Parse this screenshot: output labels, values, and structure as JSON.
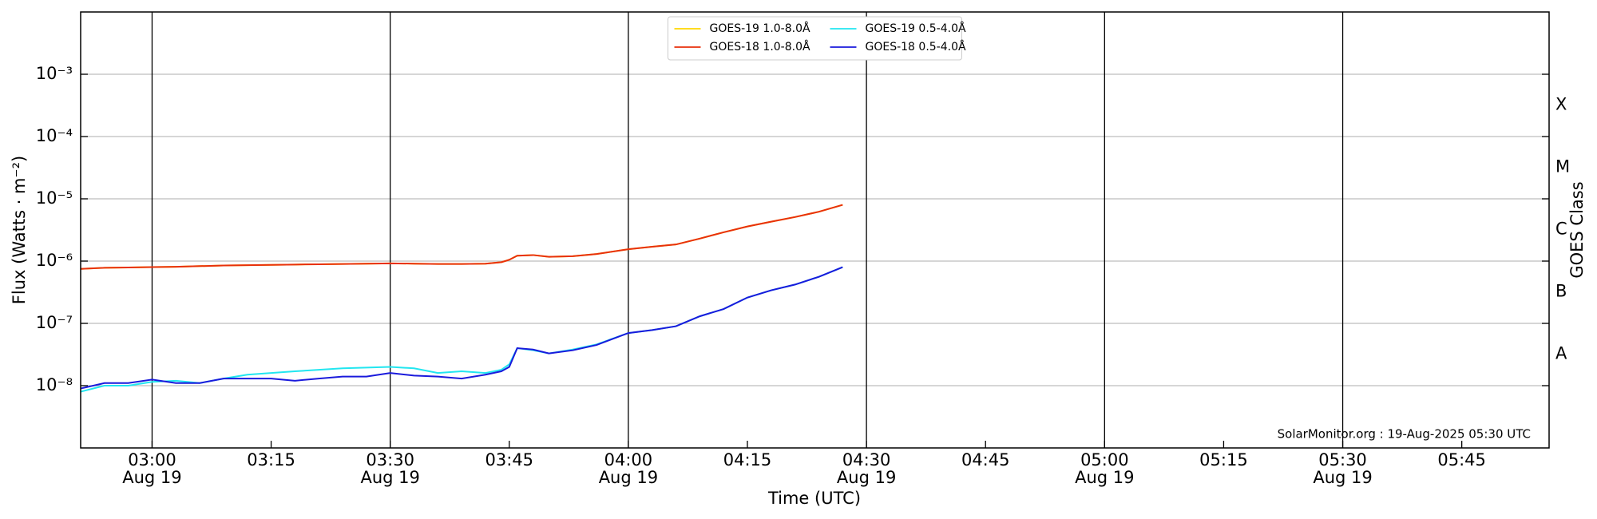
{
  "chart_data": {
    "type": "line",
    "xlabel": "Time (UTC)",
    "ylabel": "Flux (Watts · m⁻²)",
    "y2label": "GOES Class",
    "annotation": "SolarMonitor.org : 19-Aug-2025 05:30 UTC",
    "log_y": true,
    "grid": true,
    "legend": "upper center",
    "xlim": [
      "02:51",
      "05:56"
    ],
    "xticks": [
      {
        "value": "03:00",
        "label": "03:00",
        "date": "Aug 19"
      },
      "03:15",
      {
        "value": "03:30",
        "label": "03:30",
        "date": "Aug 19"
      },
      "03:45",
      {
        "value": "04:00",
        "label": "04:00",
        "date": "Aug 19"
      },
      "04:15",
      {
        "value": "04:30",
        "label": "04:30",
        "date": "Aug 19"
      },
      "04:45",
      {
        "value": "05:00",
        "label": "05:00",
        "date": "Aug 19"
      },
      "05:15",
      {
        "value": "05:30",
        "label": "05:30",
        "date": "Aug 19"
      },
      "05:45"
    ],
    "ylim": [
      1e-09,
      0.01
    ],
    "yticks": [
      {
        "value": 1e-08,
        "label": "10⁻⁸"
      },
      {
        "value": 1e-07,
        "label": "10⁻⁷"
      },
      {
        "value": 1e-06,
        "label": "10⁻⁶"
      },
      {
        "value": 1e-05,
        "label": "10⁻⁵"
      },
      {
        "value": 0.0001,
        "label": "10⁻⁴"
      },
      {
        "value": 0.001,
        "label": "10⁻³"
      }
    ],
    "y2lim": [
      1e-09,
      0.01
    ],
    "y2ticks": [
      {
        "value": 3.2e-08,
        "label": "A"
      },
      {
        "value": 3.2e-07,
        "label": "B"
      },
      {
        "value": 3.2e-06,
        "label": "C"
      },
      {
        "value": 3.2e-05,
        "label": "M"
      },
      {
        "value": 0.00032,
        "label": "X"
      }
    ],
    "x": [
      "02:51",
      "02:54",
      "02:57",
      "03:00",
      "03:03",
      "03:06",
      "03:09",
      "03:12",
      "03:15",
      "03:18",
      "03:21",
      "03:24",
      "03:27",
      "03:30",
      "03:33",
      "03:36",
      "03:39",
      "03:42",
      "03:44",
      "03:45",
      "03:46",
      "03:48",
      "03:50",
      "03:53",
      "03:56",
      "04:00",
      "04:03",
      "04:06",
      "04:09",
      "04:12",
      "04:15",
      "04:18",
      "04:21",
      "04:24",
      "04:27"
    ],
    "series": [
      {
        "name": "GOES-19 1.0-8.0Å",
        "color": "#ffd700",
        "values": [
          7.5e-07,
          7.8e-07,
          7.9e-07,
          8e-07,
          8.1e-07,
          8.3e-07,
          8.5e-07,
          8.6e-07,
          8.7e-07,
          8.8e-07,
          8.9e-07,
          9e-07,
          9.1e-07,
          9.2e-07,
          9.1e-07,
          9e-07,
          9e-07,
          9.1e-07,
          9.6e-07,
          1.05e-06,
          1.22e-06,
          1.25e-06,
          1.17e-06,
          1.2e-06,
          1.3e-06,
          1.55e-06,
          1.7e-06,
          1.85e-06,
          2.3e-06,
          2.9e-06,
          3.6e-06,
          4.3e-06,
          5.1e-06,
          6.2e-06,
          8e-06
        ]
      },
      {
        "name": "GOES-18 1.0-8.0Å",
        "color": "#e8300c",
        "values": [
          7.5e-07,
          7.8e-07,
          7.9e-07,
          8e-07,
          8.1e-07,
          8.3e-07,
          8.5e-07,
          8.6e-07,
          8.7e-07,
          8.8e-07,
          8.9e-07,
          9e-07,
          9.1e-07,
          9.2e-07,
          9.1e-07,
          9e-07,
          9e-07,
          9.1e-07,
          9.6e-07,
          1.05e-06,
          1.22e-06,
          1.25e-06,
          1.17e-06,
          1.2e-06,
          1.3e-06,
          1.55e-06,
          1.7e-06,
          1.85e-06,
          2.3e-06,
          2.9e-06,
          3.6e-06,
          4.3e-06,
          5.1e-06,
          6.2e-06,
          8e-06
        ]
      },
      {
        "name": "GOES-19 0.5-4.0Å",
        "color": "#22e6f0",
        "values": [
          8e-09,
          1e-08,
          1e-08,
          1.15e-08,
          1.2e-08,
          1.1e-08,
          1.3e-08,
          1.5e-08,
          1.6e-08,
          1.7e-08,
          1.8e-08,
          1.9e-08,
          1.95e-08,
          2e-08,
          1.9e-08,
          1.6e-08,
          1.7e-08,
          1.6e-08,
          1.8e-08,
          2.2e-08,
          4e-08,
          3.7e-08,
          3.3e-08,
          3.8e-08,
          4.6e-08,
          7e-08,
          7.8e-08,
          9e-08,
          1.3e-07,
          1.7e-07,
          2.6e-07,
          3.4e-07,
          4.2e-07,
          5.6e-07,
          8e-07
        ]
      },
      {
        "name": "GOES-18 0.5-4.0Å",
        "color": "#1a1adc",
        "values": [
          9e-09,
          1.1e-08,
          1.1e-08,
          1.25e-08,
          1.1e-08,
          1.1e-08,
          1.3e-08,
          1.3e-08,
          1.3e-08,
          1.2e-08,
          1.3e-08,
          1.4e-08,
          1.4e-08,
          1.6e-08,
          1.45e-08,
          1.4e-08,
          1.3e-08,
          1.5e-08,
          1.7e-08,
          2e-08,
          4e-08,
          3.8e-08,
          3.3e-08,
          3.7e-08,
          4.5e-08,
          7e-08,
          7.8e-08,
          9e-08,
          1.3e-07,
          1.7e-07,
          2.6e-07,
          3.4e-07,
          4.2e-07,
          5.6e-07,
          8e-07
        ]
      }
    ]
  }
}
